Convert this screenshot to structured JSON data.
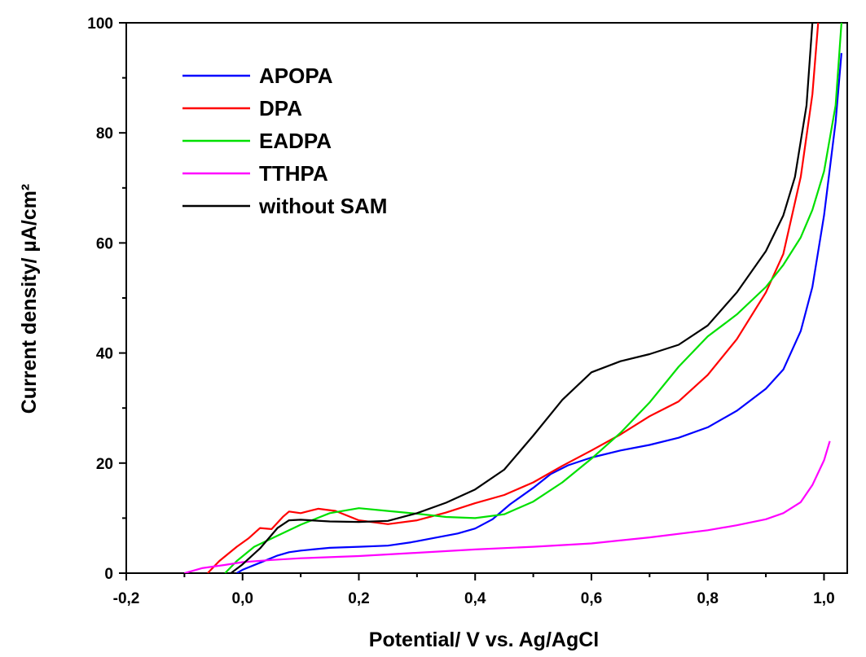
{
  "chart_data": {
    "type": "line",
    "xlabel": "Potential/ V vs. Ag/AgCl",
    "ylabel": "Current density/ µA/cm²",
    "xlim": [
      -0.2,
      1.04
    ],
    "ylim": [
      0,
      100
    ],
    "xticks": [
      -0.2,
      0.0,
      0.2,
      0.4,
      0.6,
      0.8,
      1.0
    ],
    "xtick_labels": [
      "-0,2",
      "0,0",
      "0,2",
      "0,4",
      "0,6",
      "0,8",
      "1,0"
    ],
    "yticks": [
      0,
      20,
      40,
      60,
      80,
      100
    ],
    "ytick_labels": [
      "0",
      "20",
      "40",
      "60",
      "80",
      "100"
    ],
    "legend_position": "top-left",
    "grid": false,
    "series": [
      {
        "name": "APOPA",
        "color": "#0000ff",
        "points": [
          [
            -0.01,
            0
          ],
          [
            0.0,
            0.6
          ],
          [
            0.03,
            1.9
          ],
          [
            0.06,
            3.2
          ],
          [
            0.08,
            3.8
          ],
          [
            0.1,
            4.1
          ],
          [
            0.15,
            4.6
          ],
          [
            0.2,
            4.8
          ],
          [
            0.25,
            5.0
          ],
          [
            0.29,
            5.6
          ],
          [
            0.33,
            6.4
          ],
          [
            0.37,
            7.2
          ],
          [
            0.4,
            8.1
          ],
          [
            0.43,
            9.8
          ],
          [
            0.46,
            12.5
          ],
          [
            0.5,
            15.5
          ],
          [
            0.53,
            18.0
          ],
          [
            0.56,
            19.6
          ],
          [
            0.6,
            21.0
          ],
          [
            0.65,
            22.3
          ],
          [
            0.7,
            23.3
          ],
          [
            0.75,
            24.6
          ],
          [
            0.8,
            26.5
          ],
          [
            0.85,
            29.5
          ],
          [
            0.9,
            33.5
          ],
          [
            0.93,
            37.0
          ],
          [
            0.96,
            44.0
          ],
          [
            0.98,
            52.0
          ],
          [
            1.0,
            65.0
          ],
          [
            1.02,
            82.0
          ],
          [
            1.03,
            94.5
          ]
        ]
      },
      {
        "name": "DPA",
        "color": "#ff0000",
        "points": [
          [
            -0.06,
            0
          ],
          [
            -0.04,
            2.2
          ],
          [
            -0.01,
            4.8
          ],
          [
            0.01,
            6.3
          ],
          [
            0.03,
            8.2
          ],
          [
            0.05,
            8.0
          ],
          [
            0.07,
            10.3
          ],
          [
            0.08,
            11.2
          ],
          [
            0.1,
            10.9
          ],
          [
            0.13,
            11.7
          ],
          [
            0.16,
            11.3
          ],
          [
            0.2,
            9.6
          ],
          [
            0.25,
            8.9
          ],
          [
            0.3,
            9.6
          ],
          [
            0.35,
            11.0
          ],
          [
            0.4,
            12.7
          ],
          [
            0.45,
            14.2
          ],
          [
            0.5,
            16.5
          ],
          [
            0.55,
            19.5
          ],
          [
            0.6,
            22.3
          ],
          [
            0.65,
            25.2
          ],
          [
            0.7,
            28.5
          ],
          [
            0.75,
            31.2
          ],
          [
            0.8,
            36.0
          ],
          [
            0.85,
            42.5
          ],
          [
            0.9,
            51.0
          ],
          [
            0.93,
            58.0
          ],
          [
            0.96,
            72.0
          ],
          [
            0.98,
            87.0
          ],
          [
            0.99,
            100.0
          ]
        ]
      },
      {
        "name": "EADPA",
        "color": "#00e000",
        "points": [
          [
            -0.03,
            0
          ],
          [
            -0.01,
            2.2
          ],
          [
            0.02,
            4.8
          ],
          [
            0.06,
            6.8
          ],
          [
            0.1,
            8.8
          ],
          [
            0.15,
            10.9
          ],
          [
            0.2,
            11.8
          ],
          [
            0.25,
            11.3
          ],
          [
            0.3,
            10.8
          ],
          [
            0.35,
            10.2
          ],
          [
            0.4,
            10.0
          ],
          [
            0.45,
            10.7
          ],
          [
            0.5,
            13.0
          ],
          [
            0.55,
            16.5
          ],
          [
            0.6,
            20.8
          ],
          [
            0.65,
            25.5
          ],
          [
            0.7,
            31.0
          ],
          [
            0.75,
            37.5
          ],
          [
            0.8,
            43.0
          ],
          [
            0.85,
            47.0
          ],
          [
            0.9,
            52.0
          ],
          [
            0.93,
            56.0
          ],
          [
            0.96,
            61.0
          ],
          [
            0.98,
            66.0
          ],
          [
            1.0,
            73.0
          ],
          [
            1.02,
            85.0
          ],
          [
            1.03,
            100.0
          ]
        ]
      },
      {
        "name": "TTHPA",
        "color": "#ff00ff",
        "points": [
          [
            -0.1,
            0
          ],
          [
            -0.07,
            0.9
          ],
          [
            -0.03,
            1.5
          ],
          [
            0.0,
            2.0
          ],
          [
            0.05,
            2.4
          ],
          [
            0.1,
            2.7
          ],
          [
            0.2,
            3.1
          ],
          [
            0.3,
            3.7
          ],
          [
            0.4,
            4.3
          ],
          [
            0.5,
            4.8
          ],
          [
            0.6,
            5.4
          ],
          [
            0.7,
            6.5
          ],
          [
            0.8,
            7.8
          ],
          [
            0.85,
            8.7
          ],
          [
            0.9,
            9.8
          ],
          [
            0.93,
            10.9
          ],
          [
            0.96,
            12.9
          ],
          [
            0.98,
            16.0
          ],
          [
            1.0,
            20.5
          ],
          [
            1.01,
            24.0
          ]
        ]
      },
      {
        "name": "without SAM",
        "color": "#000000",
        "points": [
          [
            -0.02,
            0
          ],
          [
            0.0,
            1.6
          ],
          [
            0.03,
            4.5
          ],
          [
            0.06,
            8.2
          ],
          [
            0.08,
            9.6
          ],
          [
            0.1,
            9.7
          ],
          [
            0.15,
            9.4
          ],
          [
            0.2,
            9.3
          ],
          [
            0.25,
            9.5
          ],
          [
            0.3,
            10.9
          ],
          [
            0.35,
            12.8
          ],
          [
            0.4,
            15.2
          ],
          [
            0.45,
            18.8
          ],
          [
            0.5,
            25.0
          ],
          [
            0.55,
            31.5
          ],
          [
            0.6,
            36.5
          ],
          [
            0.65,
            38.5
          ],
          [
            0.7,
            39.8
          ],
          [
            0.75,
            41.5
          ],
          [
            0.8,
            45.0
          ],
          [
            0.85,
            51.0
          ],
          [
            0.9,
            58.5
          ],
          [
            0.93,
            65.0
          ],
          [
            0.95,
            72.0
          ],
          [
            0.97,
            85.0
          ],
          [
            0.98,
            100.0
          ]
        ]
      }
    ]
  }
}
